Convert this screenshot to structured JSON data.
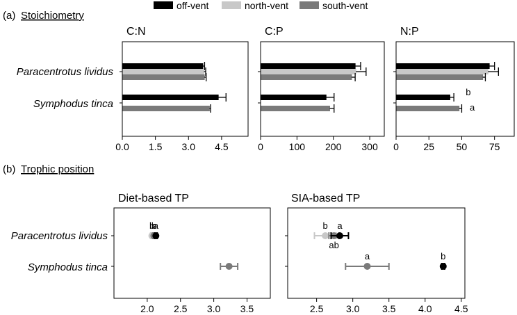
{
  "legend": [
    {
      "label": "off-vent",
      "color": "#000000"
    },
    {
      "label": "north-vent",
      "color": "#c8c8c8"
    },
    {
      "label": "south-vent",
      "color": "#7a7a7a"
    }
  ],
  "sections": {
    "a": {
      "letter": "(a)",
      "title": "Stoichiometry"
    },
    "b": {
      "letter": "(b)",
      "title": "Trophic position"
    }
  },
  "colors": {
    "off_vent": "#000000",
    "north_vent": "#c8c8c8",
    "south_vent": "#7a7a7a"
  },
  "chart_data": [
    {
      "type": "bar",
      "title": "C:N",
      "categories": [
        "Paracentrotus lividus",
        "Symphodus tinca"
      ],
      "xlim": [
        0,
        5.7
      ],
      "ticks": [
        0.0,
        1.5,
        3.0,
        4.5
      ],
      "tick_labels": [
        "0.0",
        "1.5",
        "3.0",
        "4.5"
      ],
      "series": [
        {
          "name": "off-vent",
          "values": [
            3.65,
            4.35
          ],
          "errors": [
            0.08,
            0.35
          ]
        },
        {
          "name": "north-vent",
          "values": [
            3.7,
            null
          ],
          "errors": [
            0.08,
            null
          ]
        },
        {
          "name": "south-vent",
          "values": [
            3.72,
            3.95
          ],
          "errors": [
            0.08,
            0.05
          ]
        }
      ],
      "annotations": []
    },
    {
      "type": "bar",
      "title": "C:P",
      "categories": [
        "Paracentrotus lividus",
        "Symphodus tinca"
      ],
      "xlim": [
        0,
        340
      ],
      "ticks": [
        0,
        100,
        200,
        300
      ],
      "tick_labels": [
        "0",
        "100",
        "200",
        "300"
      ],
      "series": [
        {
          "name": "off-vent",
          "values": [
            260,
            180
          ],
          "errors": [
            15,
            22
          ]
        },
        {
          "name": "north-vent",
          "values": [
            262,
            null
          ],
          "errors": [
            28,
            null
          ]
        },
        {
          "name": "south-vent",
          "values": [
            250,
            190
          ],
          "errors": [
            10,
            12
          ]
        }
      ],
      "annotations": []
    },
    {
      "type": "bar",
      "title": "N:P",
      "categories": [
        "Paracentrotus lividus",
        "Symphodus tinca"
      ],
      "xlim": [
        0,
        90
      ],
      "ticks": [
        0,
        25,
        50,
        75
      ],
      "tick_labels": [
        "0",
        "25",
        "50",
        "75"
      ],
      "series": [
        {
          "name": "off-vent",
          "values": [
            71,
            41
          ],
          "errors": [
            4,
            3
          ]
        },
        {
          "name": "north-vent",
          "values": [
            70,
            null
          ],
          "errors": [
            8,
            null
          ]
        },
        {
          "name": "south-vent",
          "values": [
            66,
            48
          ],
          "errors": [
            2,
            2
          ]
        }
      ],
      "annotations": [
        {
          "text": "b",
          "category": 1,
          "series": 0,
          "x": 55
        },
        {
          "text": "a",
          "category": 1,
          "series": 2,
          "x": 58
        }
      ]
    },
    {
      "type": "scatter",
      "title": "Diet-based TP",
      "categories": [
        "Paracentrotus lividus",
        "Symphodus tinca"
      ],
      "xlim": [
        1.5,
        3.85
      ],
      "ticks": [
        2.0,
        2.5,
        3.0,
        3.5
      ],
      "tick_labels": [
        "2.0",
        "2.5",
        "3.0",
        "3.5"
      ],
      "points": [
        {
          "series": "north-vent",
          "category": 0,
          "x": 2.07,
          "err": 0.02,
          "label": "b",
          "label_pos": "above"
        },
        {
          "series": "south-vent",
          "category": 0,
          "x": 2.1,
          "err": 0.02,
          "label": "b",
          "label_pos": "above"
        },
        {
          "series": "off-vent",
          "category": 0,
          "x": 2.13,
          "err": 0.02,
          "label": "a",
          "label_pos": "above"
        },
        {
          "series": "south-vent",
          "category": 1,
          "x": 3.23,
          "err": 0.13,
          "label": "",
          "label_pos": "above"
        }
      ]
    },
    {
      "type": "scatter",
      "title": "SIA-based TP",
      "categories": [
        "Paracentrotus lividus",
        "Symphodus tinca"
      ],
      "xlim": [
        2.1,
        4.55
      ],
      "ticks": [
        2.5,
        3.0,
        3.5,
        4.0,
        4.5
      ],
      "tick_labels": [
        "2.5",
        "3.0",
        "3.5",
        "4.0",
        "4.5"
      ],
      "points": [
        {
          "series": "north-vent",
          "category": 0,
          "x": 2.62,
          "err": 0.15,
          "label": "b",
          "label_pos": "above"
        },
        {
          "series": "south-vent",
          "category": 0,
          "x": 2.74,
          "err": 0.07,
          "label": "ab",
          "label_pos": "below"
        },
        {
          "series": "off-vent",
          "category": 0,
          "x": 2.82,
          "err": 0.12,
          "label": "a",
          "label_pos": "above"
        },
        {
          "series": "south-vent",
          "category": 1,
          "x": 3.2,
          "err": 0.3,
          "label": "a",
          "label_pos": "above"
        },
        {
          "series": "off-vent",
          "category": 1,
          "x": 4.25,
          "err": 0.02,
          "label": "b",
          "label_pos": "above"
        }
      ]
    }
  ]
}
